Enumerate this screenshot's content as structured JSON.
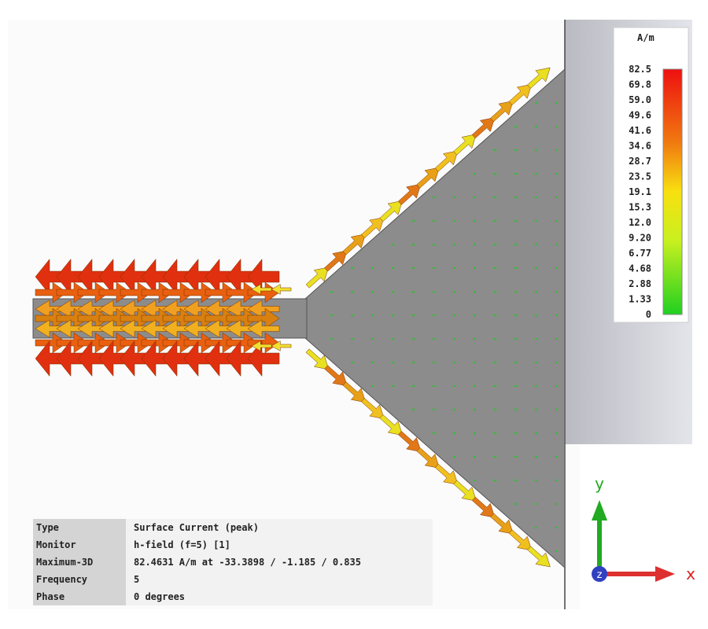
{
  "legend": {
    "unit": "A/m",
    "labels": [
      "82.5",
      "69.8",
      "59.0",
      "49.6",
      "41.6",
      "34.6",
      "28.7",
      "23.5",
      "19.1",
      "15.3",
      "12.0",
      "9.20",
      "6.77",
      "4.68",
      "2.88",
      "1.33",
      "0"
    ]
  },
  "info": {
    "rows": [
      [
        "Type",
        "Surface Current (peak)"
      ],
      [
        "Monitor",
        "h-field (f=5) [1]"
      ],
      [
        "Maximum-3D",
        "82.4631 A/m at -33.3898 / -1.185 / 0.835"
      ],
      [
        "Frequency",
        "5"
      ],
      [
        "Phase",
        "0 degrees"
      ]
    ]
  },
  "axes": {
    "y": "y",
    "x": "x",
    "z": "z"
  }
}
